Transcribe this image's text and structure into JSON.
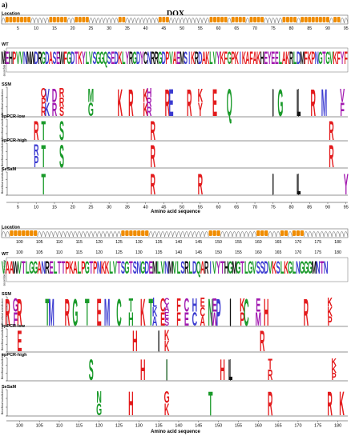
{
  "figure": {
    "panel_label": "a)",
    "title": "DOX"
  },
  "labels": {
    "location": "Location",
    "wt": "WT",
    "wt_sub": "Amino acid sequence",
    "ssm": "SSM",
    "ep_low": "epPCR-low",
    "ep_high": "epPCR-high",
    "sesam": "SeSaM",
    "beneficial_y": "Beneficial substitution",
    "x_axis": "Amino acid sequence"
  },
  "colors": {
    "red": "#e31a1c",
    "blue": "#3a3ad0",
    "green": "#1a9a2a",
    "purple": "#a21ab0",
    "black": "#111111",
    "orange": "#f08c00",
    "gray_coil": "#888888"
  },
  "blocks": [
    {
      "axis_start": 1,
      "axis_end": 96,
      "ticks": [
        5,
        10,
        15,
        20,
        25,
        30,
        35,
        40,
        45,
        50,
        55,
        60,
        65,
        70,
        75,
        80,
        85,
        90,
        95
      ],
      "helix_ranges": [
        [
          2,
          8
        ],
        [
          14,
          18
        ],
        [
          21,
          24
        ],
        [
          33,
          34
        ],
        [
          44,
          46
        ],
        [
          58,
          62
        ],
        [
          64,
          67
        ],
        [
          69,
          72
        ],
        [
          78,
          81
        ],
        [
          83,
          90
        ],
        [
          92,
          93
        ]
      ],
      "wt_sequence": "MEHPVVNMWDRGDASEWFGDTKYLVSGGQSEDKLYRGDYCNRRGDPVAEMSIKRDAKLVYKFGPKIKAFAKHEYEELAKRLDMFKPNGTGVKFYFWHLRGGKQ",
      "tracks": [
        {
          "key": "ssm",
          "events": [
            {
              "pos": 12,
              "letters": "RPQ",
              "color": "red"
            },
            {
              "pos": 13,
              "letters": "KV",
              "color": "blue"
            },
            {
              "pos": 15,
              "letters": "RD",
              "color": "purple"
            },
            {
              "pos": 17,
              "letters": "SRR",
              "color": "red"
            },
            {
              "pos": 25,
              "letters": "GM",
              "color": "green"
            },
            {
              "pos": 33,
              "letters": "K",
              "color": "red"
            },
            {
              "pos": 36,
              "letters": "R",
              "color": "red"
            },
            {
              "pos": 40,
              "letters": "KK",
              "color": "red"
            },
            {
              "pos": 41,
              "letters": "RRH",
              "color": "purple"
            },
            {
              "pos": 46,
              "letters": "R",
              "color": "red"
            },
            {
              "pos": 47,
              "letters": "E",
              "color": "blue"
            },
            {
              "pos": 52,
              "letters": "R",
              "color": "red"
            },
            {
              "pos": 55,
              "letters": "YK",
              "color": "red"
            },
            {
              "pos": 59,
              "letters": "E",
              "color": "red"
            },
            {
              "pos": 63,
              "letters": "Q",
              "color": "green"
            },
            {
              "pos": 75,
              "letters": "I",
              "color": "black"
            },
            {
              "pos": 77,
              "letters": "G",
              "color": "green"
            },
            {
              "pos": 82,
              "letters": "L",
              "color": "black"
            },
            {
              "pos": 86,
              "letters": "R",
              "color": "red"
            },
            {
              "pos": 89,
              "letters": "M",
              "color": "blue"
            },
            {
              "pos": 94,
              "letters": "FV",
              "color": "purple"
            }
          ]
        },
        {
          "key": "ep_low",
          "events": [
            {
              "pos": 10,
              "letters": "R",
              "color": "red"
            },
            {
              "pos": 12,
              "letters": "T",
              "color": "green"
            },
            {
              "pos": 17,
              "letters": "S",
              "color": "green"
            },
            {
              "pos": 42,
              "letters": "R",
              "color": "red"
            },
            {
              "pos": 91,
              "letters": "R",
              "color": "red"
            }
          ]
        },
        {
          "key": "ep_high",
          "events": [
            {
              "pos": 10,
              "letters": "PR",
              "color": "blue"
            },
            {
              "pos": 12,
              "letters": "T",
              "color": "green"
            },
            {
              "pos": 17,
              "letters": "S",
              "color": "green"
            },
            {
              "pos": 42,
              "letters": "R",
              "color": "red"
            },
            {
              "pos": 91,
              "letters": "R",
              "color": "red"
            }
          ]
        },
        {
          "key": "sesam",
          "events": [
            {
              "pos": 12,
              "letters": "T",
              "color": "green"
            },
            {
              "pos": 42,
              "letters": "R",
              "color": "red"
            },
            {
              "pos": 55,
              "letters": "R",
              "color": "red"
            },
            {
              "pos": 75,
              "letters": "I",
              "color": "black"
            },
            {
              "pos": 82,
              "letters": "L",
              "color": "black"
            },
            {
              "pos": 95,
              "letters": "Y",
              "color": "purple"
            }
          ]
        }
      ]
    },
    {
      "axis_start": 96,
      "axis_end": 183,
      "ticks": [
        100,
        105,
        110,
        115,
        120,
        125,
        130,
        135,
        140,
        145,
        150,
        155,
        160,
        165,
        170,
        175,
        180
      ],
      "helix_ranges": [
        [
          98,
          104
        ],
        [
          126,
          132
        ],
        [
          148,
          150
        ],
        [
          160,
          162
        ],
        [
          166,
          167
        ],
        [
          169,
          171
        ]
      ],
      "wt_sequence": "VAAWVTLGGANRELTTPKALPGTPNKKLVTSGTSNGDEMLVNMVLSRLDQARIVYTHGMGTLGVSSDVKSLKGLNGGGMNTN",
      "tracks": [
        {
          "key": "ssm",
          "events": [
            {
              "pos": 97,
              "letters": "R",
              "color": "red"
            },
            {
              "pos": 99,
              "letters": "FG",
              "color": "purple"
            },
            {
              "pos": 100,
              "letters": "R",
              "color": "red"
            },
            {
              "pos": 107,
              "letters": "T",
              "color": "green"
            },
            {
              "pos": 108,
              "letters": "M",
              "color": "blue"
            },
            {
              "pos": 112,
              "letters": "R",
              "color": "red"
            },
            {
              "pos": 114,
              "letters": "G",
              "color": "green"
            },
            {
              "pos": 117,
              "letters": "T",
              "color": "green"
            },
            {
              "pos": 120,
              "letters": "E",
              "color": "red"
            },
            {
              "pos": 122,
              "letters": "M",
              "color": "blue"
            },
            {
              "pos": 125,
              "letters": "C",
              "color": "green"
            },
            {
              "pos": 128,
              "letters": "HT",
              "color": "green"
            },
            {
              "pos": 131,
              "letters": "K",
              "color": "red"
            },
            {
              "pos": 133,
              "letters": "T",
              "color": "green"
            },
            {
              "pos": 134,
              "letters": "AKL",
              "color": "blue"
            },
            {
              "pos": 136,
              "letters": "EC",
              "color": "red"
            },
            {
              "pos": 137,
              "letters": "SEAC",
              "color": "purple"
            },
            {
              "pos": 140,
              "letters": "FF",
              "color": "red"
            },
            {
              "pos": 142,
              "letters": "EC",
              "color": "purple"
            },
            {
              "pos": 144,
              "letters": "CH",
              "color": "blue"
            },
            {
              "pos": 146,
              "letters": "ACE",
              "color": "red"
            },
            {
              "pos": 148,
              "letters": "N",
              "color": "green"
            },
            {
              "pos": 149,
              "letters": "WE",
              "color": "purple"
            },
            {
              "pos": 150,
              "letters": "P",
              "color": "blue"
            },
            {
              "pos": 153,
              "letters": "I",
              "color": "black"
            },
            {
              "pos": 156,
              "letters": "PK",
              "color": "red"
            },
            {
              "pos": 157,
              "letters": "C",
              "color": "green"
            },
            {
              "pos": 160,
              "letters": "ME",
              "color": "purple"
            },
            {
              "pos": 162,
              "letters": "H",
              "color": "red"
            },
            {
              "pos": 172,
              "letters": "R",
              "color": "red"
            },
            {
              "pos": 178,
              "letters": "PKK",
              "color": "red"
            }
          ]
        },
        {
          "key": "ep_low",
          "events": [
            {
              "pos": 100,
              "letters": "E",
              "color": "red"
            },
            {
              "pos": 129,
              "letters": "H",
              "color": "red"
            },
            {
              "pos": 135,
              "letters": "I",
              "color": "black"
            },
            {
              "pos": 137,
              "letters": "KK",
              "color": "red"
            },
            {
              "pos": 161,
              "letters": "R",
              "color": "red"
            }
          ]
        },
        {
          "key": "ep_high",
          "events": [
            {
              "pos": 118,
              "letters": "S",
              "color": "green"
            },
            {
              "pos": 131,
              "letters": "H",
              "color": "red"
            },
            {
              "pos": 137,
              "letters": "I",
              "color": "green"
            },
            {
              "pos": 151,
              "letters": "H",
              "color": "red"
            },
            {
              "pos": 153,
              "letters": "L",
              "color": "black"
            },
            {
              "pos": 163,
              "letters": "RT",
              "color": "red"
            },
            {
              "pos": 179,
              "letters": "PKK",
              "color": "red"
            }
          ]
        },
        {
          "key": "sesam",
          "events": [
            {
              "pos": 120,
              "letters": "GN",
              "color": "green"
            },
            {
              "pos": 128,
              "letters": "H",
              "color": "red"
            },
            {
              "pos": 137,
              "letters": "KG",
              "color": "red"
            },
            {
              "pos": 148,
              "letters": "T",
              "color": "green"
            },
            {
              "pos": 163,
              "letters": "R",
              "color": "red"
            },
            {
              "pos": 178,
              "letters": "R",
              "color": "red"
            },
            {
              "pos": 181,
              "letters": "K",
              "color": "red"
            }
          ]
        }
      ]
    }
  ]
}
